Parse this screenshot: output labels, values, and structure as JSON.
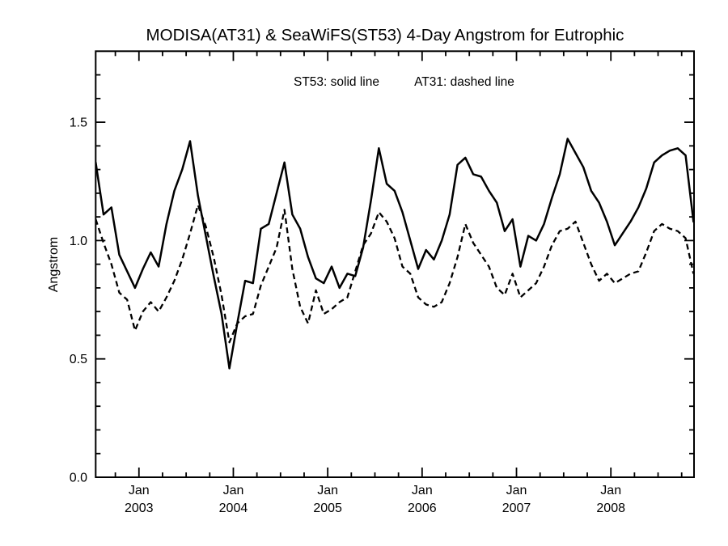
{
  "title": "MODISA(AT31) & SeaWiFS(ST53) 4-Day Angstrom for Eutrophic",
  "legend": {
    "st53": "ST53: solid line",
    "at31": "AT31: dashed line"
  },
  "colors": {
    "foreground": "#000000",
    "background": "#ffffff"
  },
  "chart_data": {
    "type": "line",
    "title": "MODISA(AT31) & SeaWiFS(ST53) 4-Day Angstrom for Eutrophic",
    "annotation": "ST53: solid line   AT31: dashed line",
    "xlabel": "",
    "ylabel": "Angstrom",
    "grid": false,
    "legend_position": "top-center-inside",
    "ylim": [
      0.0,
      1.8
    ],
    "xlim": [
      2002.5417,
      2008.881
    ],
    "y_axis": {
      "major_ticks": [
        0.0,
        0.5,
        1.0,
        1.5
      ],
      "major_tick_labels": [
        "0.0",
        "0.5",
        "1.0",
        "1.5"
      ],
      "minor_tick_step": 0.1
    },
    "x_axis": {
      "major_ticks": [
        {
          "t": 2003,
          "line1": "Jan",
          "line2": "2003"
        },
        {
          "t": 2004,
          "line1": "Jan",
          "line2": "2004"
        },
        {
          "t": 2005,
          "line1": "Jan",
          "line2": "2005"
        },
        {
          "t": 2006,
          "line1": "Jan",
          "line2": "2006"
        },
        {
          "t": 2007,
          "line1": "Jan",
          "line2": "2007"
        },
        {
          "t": 2008,
          "line1": "Jan",
          "line2": "2008"
        }
      ],
      "minor_tick_step_years": 0.25
    },
    "x_time": {
      "start_month": "2002-07",
      "end_month": "2008-11",
      "step": "1 month",
      "start_decimal_year_midmonth": 2002.5417
    },
    "series": [
      {
        "name": "ST53",
        "instrument": "SeaWiFS",
        "style": "solid",
        "color": "#000000",
        "values": [
          1.33,
          1.11,
          1.14,
          0.94,
          0.87,
          0.8,
          0.88,
          0.95,
          0.89,
          1.07,
          1.21,
          1.3,
          1.42,
          1.19,
          1.02,
          0.85,
          0.69,
          0.46,
          0.65,
          0.83,
          0.82,
          1.05,
          1.07,
          1.2,
          1.33,
          1.11,
          1.05,
          0.93,
          0.84,
          0.82,
          0.89,
          0.8,
          0.86,
          0.85,
          0.97,
          1.17,
          1.39,
          1.24,
          1.21,
          1.12,
          1.0,
          0.88,
          0.96,
          0.92,
          1.0,
          1.11,
          1.32,
          1.35,
          1.28,
          1.27,
          1.21,
          1.16,
          1.04,
          1.09,
          0.89,
          1.02,
          1.0,
          1.07,
          1.18,
          1.28,
          1.43,
          1.37,
          1.31,
          1.21,
          1.16,
          1.08,
          0.98,
          1.03,
          1.08,
          1.14,
          1.22,
          1.33,
          1.36,
          1.38,
          1.39,
          1.36,
          1.08
        ]
      },
      {
        "name": "AT31",
        "instrument": "MODISA",
        "style": "dashed",
        "color": "#000000",
        "values": [
          1.09,
          0.99,
          0.9,
          0.78,
          0.75,
          0.62,
          0.7,
          0.74,
          0.7,
          0.76,
          0.83,
          0.92,
          1.03,
          1.15,
          1.06,
          0.93,
          0.77,
          0.57,
          0.65,
          0.68,
          0.69,
          0.81,
          0.89,
          0.97,
          1.13,
          0.88,
          0.72,
          0.65,
          0.79,
          0.69,
          0.71,
          0.74,
          0.76,
          0.87,
          0.98,
          1.03,
          1.12,
          1.08,
          1.01,
          0.89,
          0.86,
          0.76,
          0.73,
          0.72,
          0.74,
          0.82,
          0.93,
          1.07,
          0.99,
          0.94,
          0.89,
          0.8,
          0.77,
          0.86,
          0.76,
          0.79,
          0.82,
          0.89,
          0.98,
          1.04,
          1.05,
          1.08,
          0.99,
          0.9,
          0.83,
          0.86,
          0.82,
          0.84,
          0.86,
          0.87,
          0.95,
          1.04,
          1.07,
          1.05,
          1.04,
          1.01,
          0.86
        ]
      }
    ]
  }
}
